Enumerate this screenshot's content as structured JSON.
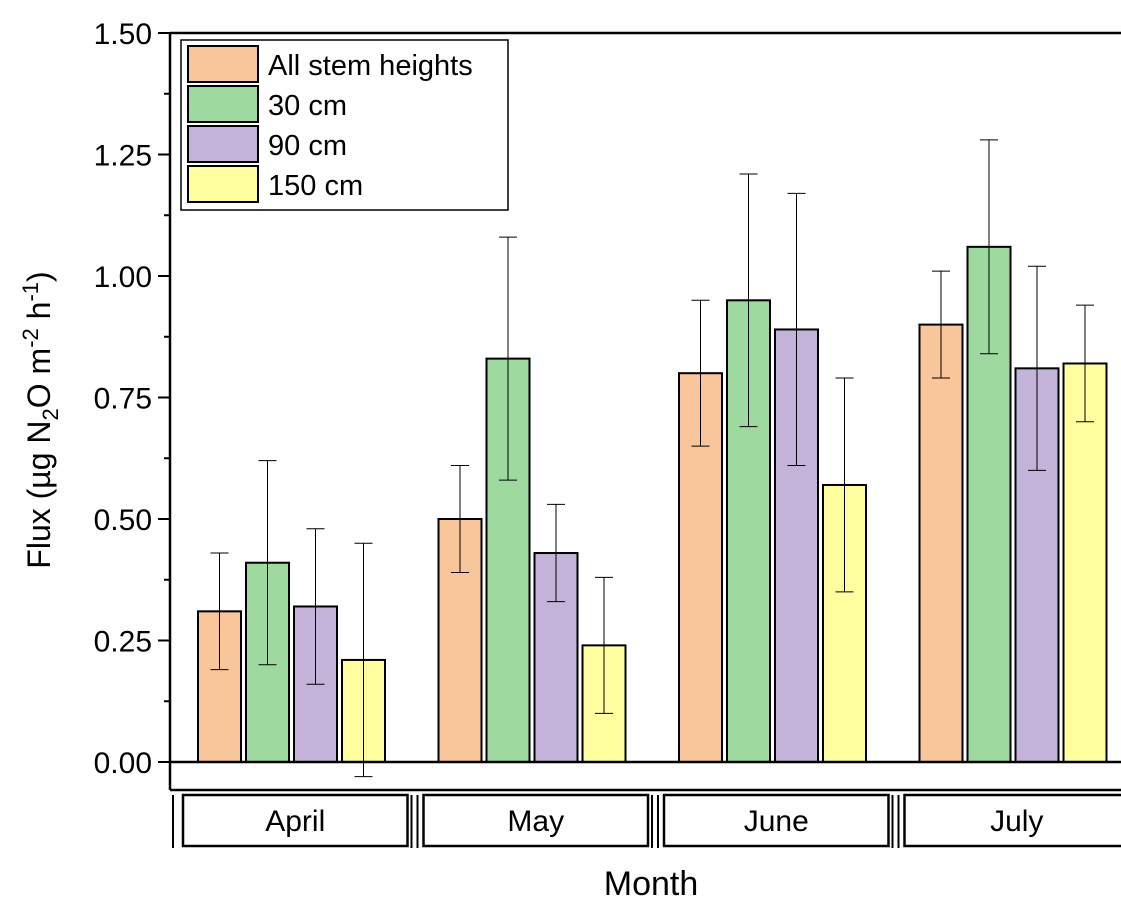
{
  "chart_data": {
    "type": "bar",
    "categories": [
      "April",
      "May",
      "June",
      "July"
    ],
    "ylabel": {
      "prefix": "Flux (µg N",
      "sub": "2",
      "mid": "O m",
      "sup1": "-2",
      "mid2": " h",
      "sup2": "-1",
      "suffix": ")"
    },
    "xlabel": "Month",
    "ylim": [
      0,
      1.5
    ],
    "yticks": [
      "0.00",
      "0.25",
      "0.50",
      "0.75",
      "1.00",
      "1.25",
      "1.50"
    ],
    "ytick_values": [
      0,
      0.25,
      0.5,
      0.75,
      1.0,
      1.25,
      1.5
    ],
    "legend_position": "top-left",
    "grid": false,
    "series": [
      {
        "name": "All stem heights",
        "color": "#F9C59A",
        "values": [
          0.31,
          0.5,
          0.8,
          0.9
        ],
        "error_low": [
          0.19,
          0.39,
          0.65,
          0.79
        ],
        "error_high": [
          0.43,
          0.61,
          0.95,
          1.01
        ]
      },
      {
        "name": "30 cm",
        "color": "#9ED99F",
        "values": [
          0.41,
          0.83,
          0.95,
          1.06
        ],
        "error_low": [
          0.2,
          0.58,
          0.69,
          0.84
        ],
        "error_high": [
          0.62,
          1.08,
          1.21,
          1.28
        ]
      },
      {
        "name": "90 cm",
        "color": "#C3B3D8",
        "values": [
          0.32,
          0.43,
          0.89,
          0.81
        ],
        "error_low": [
          0.16,
          0.33,
          0.61,
          0.6
        ],
        "error_high": [
          0.48,
          0.53,
          1.17,
          1.02
        ]
      },
      {
        "name": "150 cm",
        "color": "#FEFE9F",
        "values": [
          0.21,
          0.24,
          0.57,
          0.82
        ],
        "error_low": [
          -0.03,
          0.1,
          0.35,
          0.7
        ],
        "error_high": [
          0.45,
          0.38,
          0.79,
          0.94
        ]
      }
    ]
  }
}
